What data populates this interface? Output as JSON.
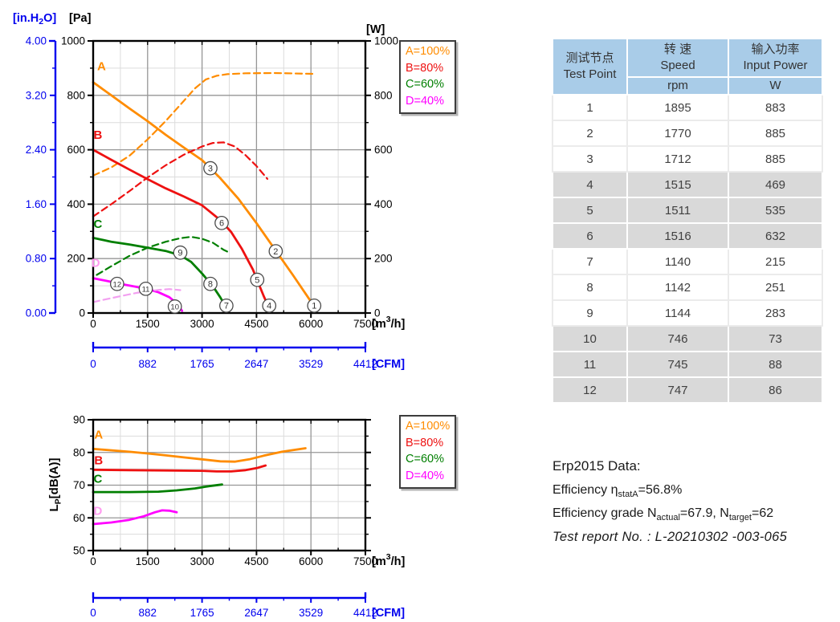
{
  "legend": {
    "items": [
      {
        "label": "A=100%",
        "color": "#FF8C00"
      },
      {
        "label": "B=80%",
        "color": "#EE1111"
      },
      {
        "label": "C=60%",
        "color": "#007F00"
      },
      {
        "label": "D=40%",
        "color": "#FF00FF"
      }
    ]
  },
  "chart_data": [
    {
      "id": "pressure",
      "type": "line",
      "title": "Static pressure / input power vs airflow",
      "x": {
        "label_pieces": [
          "[m",
          "3",
          "/h]"
        ],
        "min": 0,
        "max": 7500,
        "major_ticks": [
          0,
          1500,
          3000,
          4500,
          6000,
          7500
        ],
        "minor_step": 750
      },
      "y_pa": {
        "label": "[Pa]",
        "min": 0,
        "max": 1000,
        "major_ticks": [
          0,
          200,
          400,
          600,
          800,
          1000
        ],
        "minor_step": 100
      },
      "y_inh2o": {
        "label_pieces": [
          "[in.H",
          "2",
          "O]"
        ],
        "color": "#0000EE",
        "ticks": [
          "0.00",
          "0.80",
          "1.60",
          "2.40",
          "3.20",
          "4.00"
        ],
        "max": 4.0
      },
      "y_w": {
        "label": "[W]",
        "min": 0,
        "max": 1000,
        "major_ticks": [
          0,
          200,
          400,
          600,
          800,
          1000
        ]
      },
      "cfm": {
        "label": "[CFM]",
        "color": "#0000EE",
        "ticks": [
          "0",
          "882",
          "1765",
          "2647",
          "3529",
          "4412"
        ]
      },
      "series": [
        {
          "name": "A-pressure",
          "color": "#FF8C00",
          "dash": false,
          "points": [
            [
              0,
              848
            ],
            [
              500,
              800
            ],
            [
              1000,
              752
            ],
            [
              1500,
              705
            ],
            [
              2000,
              655
            ],
            [
              2500,
              608
            ],
            [
              3000,
              562
            ],
            [
              3230,
              532
            ],
            [
              3500,
              496
            ],
            [
              4000,
              420
            ],
            [
              4500,
              330
            ],
            [
              5000,
              235
            ],
            [
              5500,
              140
            ],
            [
              6000,
              42
            ],
            [
              6150,
              12
            ]
          ]
        },
        {
          "name": "A-power",
          "color": "#FF8C00",
          "dash": true,
          "points": [
            [
              0,
              505
            ],
            [
              500,
              535
            ],
            [
              1000,
              578
            ],
            [
              1500,
              638
            ],
            [
              2000,
              706
            ],
            [
              2500,
              780
            ],
            [
              2800,
              825
            ],
            [
              3100,
              858
            ],
            [
              3400,
              872
            ],
            [
              3700,
              878
            ],
            [
              4200,
              881
            ],
            [
              5000,
              882
            ],
            [
              6050,
              879
            ]
          ]
        },
        {
          "name": "B-pressure",
          "color": "#EE1111",
          "dash": false,
          "points": [
            [
              0,
              600
            ],
            [
              500,
              563
            ],
            [
              1000,
              527
            ],
            [
              1500,
              492
            ],
            [
              2000,
              458
            ],
            [
              2500,
              428
            ],
            [
              3000,
              396
            ],
            [
              3500,
              342
            ],
            [
              3800,
              298
            ],
            [
              4100,
              235
            ],
            [
              4400,
              160
            ],
            [
              4700,
              62
            ],
            [
              4850,
              18
            ]
          ]
        },
        {
          "name": "B-power",
          "color": "#EE1111",
          "dash": true,
          "points": [
            [
              0,
              355
            ],
            [
              500,
              400
            ],
            [
              1000,
              448
            ],
            [
              1500,
              498
            ],
            [
              2000,
              543
            ],
            [
              2500,
              582
            ],
            [
              3000,
              612
            ],
            [
              3300,
              625
            ],
            [
              3600,
              627
            ],
            [
              3900,
              612
            ],
            [
              4200,
              580
            ],
            [
              4500,
              540
            ],
            [
              4800,
              493
            ]
          ]
        },
        {
          "name": "C-pressure",
          "color": "#007F00",
          "dash": false,
          "points": [
            [
              0,
              276
            ],
            [
              500,
              262
            ],
            [
              1000,
              252
            ],
            [
              1500,
              240
            ],
            [
              2000,
              228
            ],
            [
              2400,
              212
            ],
            [
              2700,
              188
            ],
            [
              3000,
              145
            ],
            [
              3300,
              98
            ],
            [
              3500,
              58
            ],
            [
              3700,
              14
            ]
          ]
        },
        {
          "name": "C-power",
          "color": "#007F00",
          "dash": true,
          "points": [
            [
              100,
              140
            ],
            [
              500,
              172
            ],
            [
              1000,
              210
            ],
            [
              1500,
              240
            ],
            [
              2000,
              262
            ],
            [
              2400,
              275
            ],
            [
              2700,
              280
            ],
            [
              3000,
              273
            ],
            [
              3300,
              258
            ],
            [
              3600,
              232
            ],
            [
              3750,
              222
            ]
          ]
        },
        {
          "name": "D-pressure",
          "color": "#FF00FF",
          "dash": false,
          "points": [
            [
              0,
              128
            ],
            [
              400,
              117
            ],
            [
              800,
              106
            ],
            [
              1200,
              96
            ],
            [
              1500,
              88
            ],
            [
              1800,
              76
            ],
            [
              2100,
              58
            ],
            [
              2300,
              36
            ],
            [
              2450,
              8
            ]
          ]
        },
        {
          "name": "D-power",
          "color": "#F2A0F0",
          "dash": true,
          "points": [
            [
              0,
              40
            ],
            [
              400,
              52
            ],
            [
              800,
              63
            ],
            [
              1200,
              74
            ],
            [
              1500,
              80
            ],
            [
              1800,
              85
            ],
            [
              2100,
              88
            ],
            [
              2400,
              84
            ]
          ]
        }
      ],
      "markers": [
        {
          "label": "1",
          "x": 6090,
          "y": 27
        },
        {
          "label": "2",
          "x": 5030,
          "y": 227
        },
        {
          "label": "3",
          "x": 3230,
          "y": 532
        },
        {
          "label": "4",
          "x": 4850,
          "y": 27
        },
        {
          "label": "5",
          "x": 4520,
          "y": 122
        },
        {
          "label": "6",
          "x": 3540,
          "y": 331
        },
        {
          "label": "7",
          "x": 3670,
          "y": 27
        },
        {
          "label": "8",
          "x": 3230,
          "y": 107
        },
        {
          "label": "9",
          "x": 2400,
          "y": 222
        },
        {
          "label": "10",
          "x": 2250,
          "y": 24
        },
        {
          "label": "11",
          "x": 1450,
          "y": 89
        },
        {
          "label": "12",
          "x": 660,
          "y": 107
        }
      ],
      "curve_labels": [
        {
          "text": "A",
          "x": 230,
          "y": 893,
          "color": "#FF8C00"
        },
        {
          "text": "B",
          "x": 130,
          "y": 640,
          "color": "#EE1111"
        },
        {
          "text": "C",
          "x": 130,
          "y": 312,
          "color": "#007F00"
        },
        {
          "text": "D",
          "x": 70,
          "y": 170,
          "color": "#FF9BF0"
        }
      ]
    },
    {
      "id": "noise",
      "type": "line",
      "title": "Sound pressure level vs airflow",
      "x": {
        "label_pieces": [
          "[m",
          "3",
          "/h]"
        ],
        "min": 0,
        "max": 7500,
        "major_ticks": [
          0,
          1500,
          3000,
          4500,
          6000,
          7500
        ],
        "minor_step": 750
      },
      "y": {
        "label_pieces": [
          "L",
          "P",
          "[dB(A)]"
        ],
        "min": 50,
        "max": 90,
        "major_ticks": [
          50,
          60,
          70,
          80,
          90
        ],
        "minor_step": 5
      },
      "cfm": {
        "label": "[CFM]",
        "color": "#0000EE",
        "ticks": [
          "0",
          "882",
          "1765",
          "2647",
          "3529",
          "4412"
        ]
      },
      "series": [
        {
          "name": "A-noise",
          "color": "#FF8C00",
          "dash": false,
          "points": [
            [
              0,
              81.1
            ],
            [
              1000,
              80.2
            ],
            [
              1500,
              79.7
            ],
            [
              2000,
              79.1
            ],
            [
              2500,
              78.5
            ],
            [
              3000,
              77.9
            ],
            [
              3500,
              77.3
            ],
            [
              3900,
              77.2
            ],
            [
              4300,
              77.9
            ],
            [
              4700,
              79.0
            ],
            [
              5200,
              80.2
            ],
            [
              5850,
              81.3
            ]
          ]
        },
        {
          "name": "B-noise",
          "color": "#EE1111",
          "dash": false,
          "points": [
            [
              0,
              74.7
            ],
            [
              1000,
              74.6
            ],
            [
              2000,
              74.5
            ],
            [
              3000,
              74.4
            ],
            [
              3400,
              74.2
            ],
            [
              3800,
              74.2
            ],
            [
              4200,
              74.6
            ],
            [
              4500,
              75.2
            ],
            [
              4750,
              76.0
            ]
          ]
        },
        {
          "name": "C-noise",
          "color": "#007F00",
          "dash": false,
          "points": [
            [
              0,
              67.9
            ],
            [
              1000,
              67.9
            ],
            [
              1800,
              68.0
            ],
            [
              2300,
              68.4
            ],
            [
              2800,
              69.0
            ],
            [
              3200,
              69.7
            ],
            [
              3550,
              70.2
            ]
          ]
        },
        {
          "name": "D-noise",
          "color": "#FF00FF",
          "dash": false,
          "points": [
            [
              0,
              58.1
            ],
            [
              500,
              58.6
            ],
            [
              1000,
              59.4
            ],
            [
              1400,
              60.5
            ],
            [
              1700,
              61.7
            ],
            [
              1900,
              62.3
            ],
            [
              2100,
              62.2
            ],
            [
              2300,
              61.7
            ]
          ]
        }
      ],
      "markers": [],
      "curve_labels": [
        {
          "text": "A",
          "x": 150,
          "y": 84.2,
          "color": "#FF8C00"
        },
        {
          "text": "B",
          "x": 150,
          "y": 76.4,
          "color": "#EE1111"
        },
        {
          "text": "C",
          "x": 130,
          "y": 70.7,
          "color": "#007F00"
        },
        {
          "text": "D",
          "x": 130,
          "y": 60.9,
          "color": "#FF9BF0"
        }
      ]
    }
  ],
  "table": {
    "headers": {
      "col1_zh": "测试节点",
      "col1_en": "Test Point",
      "col2_zh": "转 速",
      "col2_en": "Speed",
      "col2_unit": "rpm",
      "col3_zh": "输入功率",
      "col3_en": "Input Power",
      "col3_unit": "W"
    },
    "rows": [
      {
        "point": "1",
        "rpm": "1895",
        "power": "883"
      },
      {
        "point": "2",
        "rpm": "1770",
        "power": "885"
      },
      {
        "point": "3",
        "rpm": "1712",
        "power": "885"
      },
      {
        "point": "4",
        "rpm": "1515",
        "power": "469"
      },
      {
        "point": "5",
        "rpm": "1511",
        "power": "535"
      },
      {
        "point": "6",
        "rpm": "1516",
        "power": "632"
      },
      {
        "point": "7",
        "rpm": "1140",
        "power": "215"
      },
      {
        "point": "8",
        "rpm": "1142",
        "power": "251"
      },
      {
        "point": "9",
        "rpm": "1144",
        "power": "283"
      },
      {
        "point": "10",
        "rpm": "746",
        "power": "73"
      },
      {
        "point": "11",
        "rpm": "745",
        "power": "88"
      },
      {
        "point": "12",
        "rpm": "747",
        "power": "86"
      }
    ]
  },
  "erp": {
    "title": "Erp2015  Data:",
    "line1": {
      "pre": "Efficiency η",
      "sub": "statA",
      "post": "=56.8%"
    },
    "line2": {
      "pre": "Efficiency grade N",
      "sub1": "actual",
      "mid": "=67.9, N",
      "sub2": "target",
      "post": "=62"
    },
    "report": "Test report No. : L-20210302 -003-065"
  }
}
